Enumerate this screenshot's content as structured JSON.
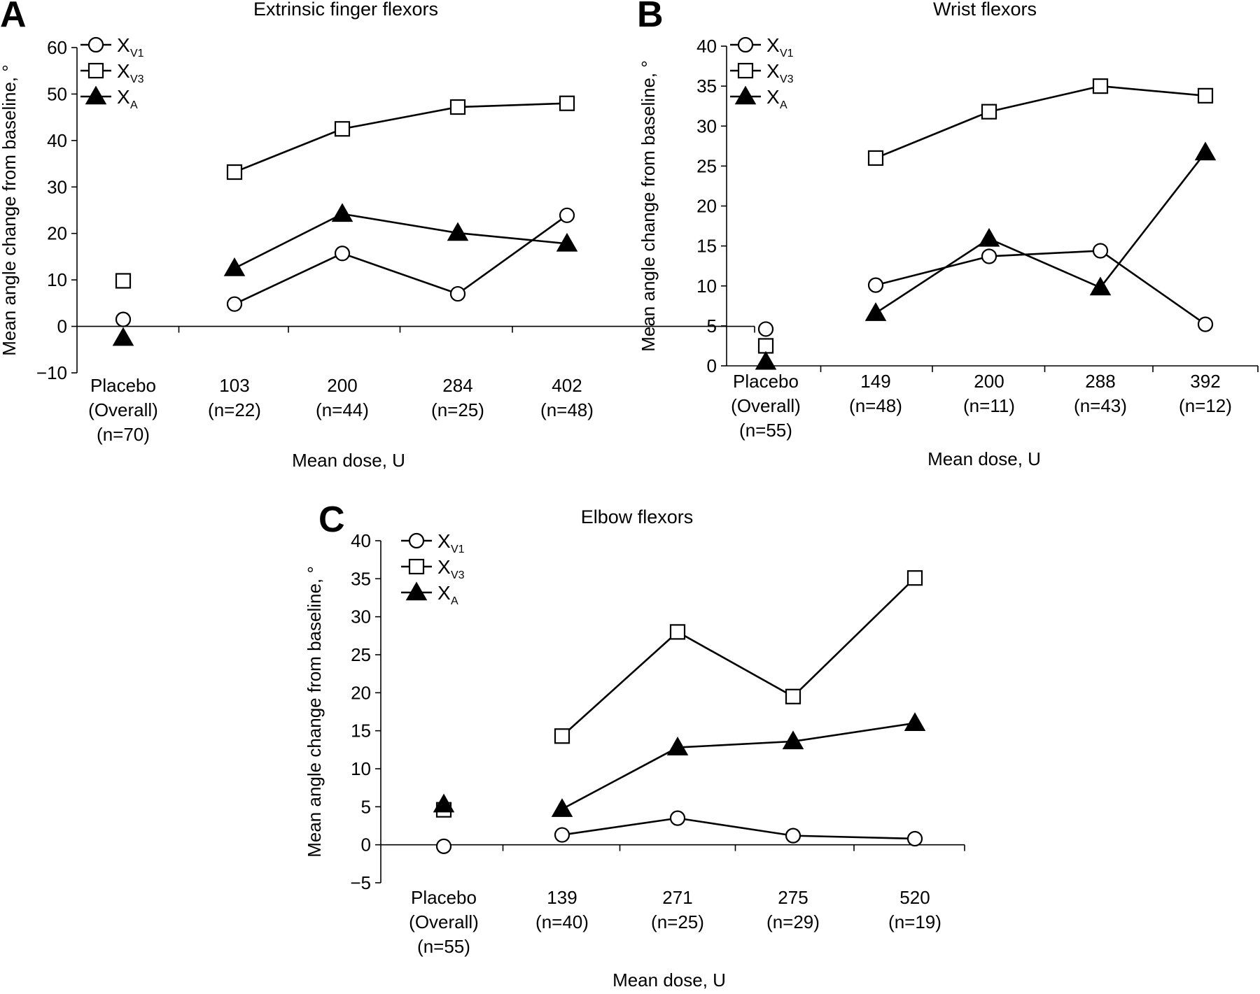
{
  "chart_data": [
    {
      "type": "line",
      "panel": "A",
      "title": "Extrinsic finger flexors",
      "xlabel": "Mean dose, U",
      "ylabel": "Mean angle change from baseline, °",
      "ylim": [
        -10,
        60
      ],
      "yticks": [
        -10,
        0,
        10,
        20,
        30,
        40,
        50,
        60
      ],
      "ytick_labels": [
        "−10",
        "0",
        "10",
        "20",
        "30",
        "40",
        "50",
        "60"
      ],
      "categories": [
        [
          "Placebo",
          "(Overall)",
          "(n=70)"
        ],
        [
          "103",
          "(n=22)"
        ],
        [
          "200",
          "(n=44)"
        ],
        [
          "284",
          "(n=25)"
        ],
        [
          "402",
          "(n=48)"
        ]
      ],
      "series": [
        {
          "name": "X",
          "sub": "V1",
          "marker": "circle",
          "values": [
            1.5,
            4.8,
            15.7,
            7.0,
            23.9
          ]
        },
        {
          "name": "X",
          "sub": "V3",
          "marker": "square",
          "values": [
            9.8,
            33.2,
            42.5,
            47.2,
            48.0
          ]
        },
        {
          "name": "X",
          "sub": "A",
          "marker": "triangle",
          "values": [
            -2.5,
            12.5,
            24.2,
            20.1,
            17.8
          ]
        }
      ],
      "legend": "top-left",
      "grid": false
    },
    {
      "type": "line",
      "panel": "B",
      "title": "Wrist flexors",
      "xlabel": "Mean dose, U",
      "ylabel": "Mean angle change from baseline, °",
      "ylim": [
        0,
        40
      ],
      "yticks": [
        0,
        5,
        10,
        15,
        20,
        25,
        30,
        35,
        40
      ],
      "ytick_labels": [
        "0",
        "5",
        "10",
        "15",
        "20",
        "25",
        "30",
        "35",
        "40"
      ],
      "categories": [
        [
          "Placebo",
          "(Overall)",
          "(n=55)"
        ],
        [
          "149",
          "(n=48)"
        ],
        [
          "200",
          "(n=11)"
        ],
        [
          "288",
          "(n=43)"
        ],
        [
          "392",
          "(n=12)"
        ]
      ],
      "series": [
        {
          "name": "X",
          "sub": "V1",
          "marker": "circle",
          "values": [
            4.6,
            10.1,
            13.7,
            14.4,
            5.2
          ]
        },
        {
          "name": "X",
          "sub": "V3",
          "marker": "square",
          "values": [
            2.5,
            26.0,
            31.8,
            35.0,
            33.8
          ]
        },
        {
          "name": "X",
          "sub": "A",
          "marker": "triangle",
          "values": [
            0.5,
            6.6,
            15.9,
            9.8,
            26.7
          ]
        }
      ],
      "legend": "top-left",
      "grid": false
    },
    {
      "type": "line",
      "panel": "C",
      "title": "Elbow flexors",
      "xlabel": "Mean dose, U",
      "ylabel": "Mean angle change from baseline, °",
      "ylim": [
        -5,
        40
      ],
      "yticks": [
        -5,
        0,
        5,
        10,
        15,
        20,
        25,
        30,
        35,
        40
      ],
      "ytick_labels": [
        "−5",
        "0",
        "5",
        "10",
        "15",
        "20",
        "25",
        "30",
        "35",
        "40"
      ],
      "categories": [
        [
          "Placebo",
          "(Overall)",
          "(n=55)"
        ],
        [
          "139",
          "(n=40)"
        ],
        [
          "271",
          "(n=25)"
        ],
        [
          "275",
          "(n=29)"
        ],
        [
          "520",
          "(n=19)"
        ]
      ],
      "series": [
        {
          "name": "X",
          "sub": "V1",
          "marker": "circle",
          "values": [
            -0.2,
            1.3,
            3.5,
            1.2,
            0.8
          ]
        },
        {
          "name": "X",
          "sub": "V3",
          "marker": "square",
          "values": [
            4.6,
            14.3,
            28.0,
            19.5,
            35.1
          ]
        },
        {
          "name": "X",
          "sub": "A",
          "marker": "triangle",
          "values": [
            5.3,
            4.7,
            12.8,
            13.6,
            16.0
          ]
        }
      ],
      "legend": "top-left",
      "grid": false
    }
  ]
}
